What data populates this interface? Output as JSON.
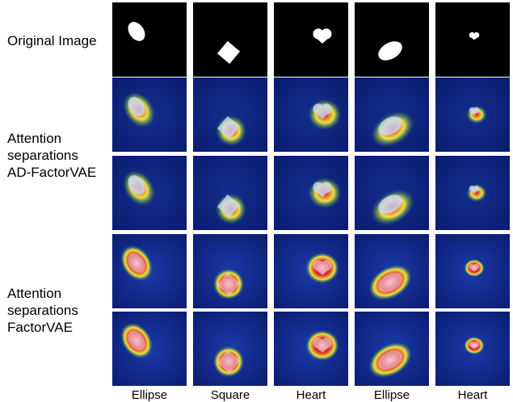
{
  "row_labels": {
    "original": "Original Image",
    "ad_factorvae": [
      "Attention",
      "separations",
      "AD-FactorVAE"
    ],
    "factorvae": [
      "Attention",
      "separations",
      "FactorVAE"
    ]
  },
  "columns": [
    {
      "label": "Ellipse",
      "shape": "ellipse"
    },
    {
      "label": "Square",
      "shape": "square"
    },
    {
      "label": "Heart",
      "shape": "heart"
    },
    {
      "label": "Ellipse",
      "shape": "ellipse"
    },
    {
      "label": "Heart",
      "shape": "heart"
    }
  ],
  "colors": {
    "background_dark": "#000000",
    "heatmap_dark_blue": "#0a1a6e",
    "heatmap_blue": "#1a3aa8",
    "heatmap_red": "#d0202a",
    "heatmap_yellow": "#f0e040",
    "heatmap_green": "#30a050",
    "shape_light": "#c8d8f8"
  }
}
